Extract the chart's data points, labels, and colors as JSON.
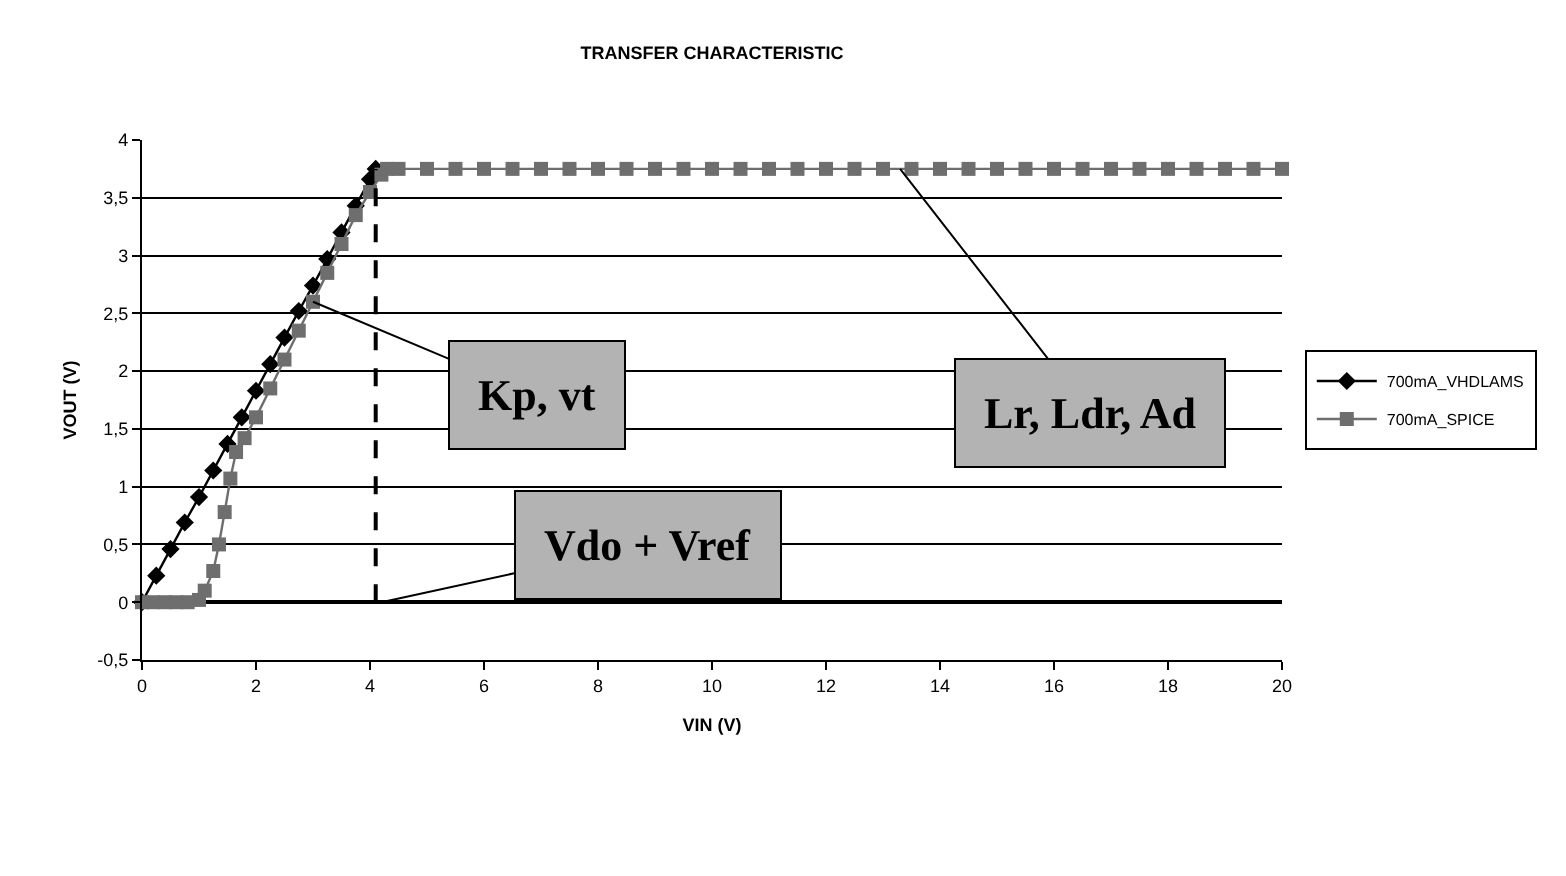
{
  "chart_data": {
    "type": "line",
    "title": "TRANSFER CHARACTERISTIC",
    "xlabel": "VIN (V)",
    "ylabel": "VOUT (V)",
    "xlim": [
      0,
      20
    ],
    "xticks": [
      0,
      2,
      4,
      6,
      8,
      10,
      12,
      14,
      16,
      18,
      20
    ],
    "ylim": [
      -0.5,
      4
    ],
    "yticks": [
      {
        "value": -0.5,
        "label": "-0,5"
      },
      0,
      {
        "value": 0.5,
        "label": "0,5"
      },
      1,
      {
        "value": 1.5,
        "label": "1,5"
      },
      2,
      {
        "value": 2.5,
        "label": "2,5"
      },
      3,
      {
        "value": 3.5,
        "label": "3,5"
      },
      4
    ],
    "grid": "y",
    "legend": "right",
    "series": [
      {
        "name": "700mA_VHDLAMS",
        "color": "#000000",
        "marker": "diamond",
        "x": [
          0,
          0.25,
          0.5,
          0.75,
          1,
          1.25,
          1.5,
          1.75,
          2,
          2.25,
          2.5,
          2.75,
          3,
          3.25,
          3.5,
          3.75,
          4,
          4.1
        ],
        "values": [
          0,
          0.23,
          0.46,
          0.69,
          0.91,
          1.14,
          1.37,
          1.6,
          1.83,
          2.06,
          2.29,
          2.52,
          2.74,
          2.97,
          3.2,
          3.43,
          3.66,
          3.75
        ]
      },
      {
        "name": "700mA_SPICE",
        "color": "#6e6e6e",
        "marker": "square",
        "x": [
          0,
          0.2,
          0.4,
          0.6,
          0.8,
          1,
          1.1,
          1.25,
          1.35,
          1.45,
          1.55,
          1.65,
          1.8,
          2,
          2.25,
          2.5,
          2.75,
          3,
          3.25,
          3.5,
          3.75,
          4,
          4.2,
          4.3,
          4.5,
          5,
          5.5,
          6,
          6.5,
          7,
          7.5,
          8,
          8.5,
          9,
          9.5,
          10,
          10.5,
          11,
          11.5,
          12,
          12.5,
          13,
          13.5,
          14,
          14.5,
          15,
          15.5,
          16,
          16.5,
          17,
          17.5,
          18,
          18.5,
          19,
          19.5,
          20
        ],
        "values": [
          0,
          0,
          0,
          0,
          0,
          0.02,
          0.1,
          0.27,
          0.5,
          0.78,
          1.07,
          1.3,
          1.42,
          1.6,
          1.85,
          2.1,
          2.35,
          2.6,
          2.85,
          3.1,
          3.35,
          3.55,
          3.7,
          3.75,
          3.75,
          3.75,
          3.75,
          3.75,
          3.75,
          3.75,
          3.75,
          3.75,
          3.75,
          3.75,
          3.75,
          3.75,
          3.75,
          3.75,
          3.75,
          3.75,
          3.75,
          3.75,
          3.75,
          3.75,
          3.75,
          3.75,
          3.75,
          3.75,
          3.75,
          3.75,
          3.75,
          3.75,
          3.75,
          3.75,
          3.75,
          3.75
        ]
      },
      {
        "color": "#000000",
        "marker": "none",
        "line_style": "dashed",
        "x": [
          4.1,
          4.1
        ],
        "values": [
          0,
          3.75
        ]
      }
    ],
    "annotations": [
      {
        "text": "Kp, vt",
        "x": 3.0,
        "y": 2.6
      },
      {
        "text": "Lr, Ldr, Ad",
        "x": 13.3,
        "y": 3.75
      },
      {
        "text": "Vdo + Vref",
        "x": 4.2,
        "y": 0
      }
    ]
  }
}
